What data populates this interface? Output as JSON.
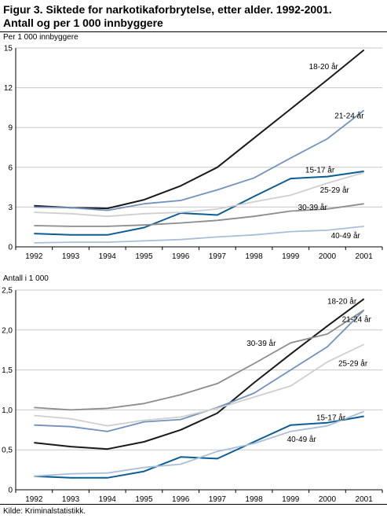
{
  "title_line1": "Figur 3. Siktede for narkotikaforbrytelse, etter alder. 1992-2001.",
  "title_line2": "Antall og per 1 000 innbyggere",
  "source": "Kilde: Kriminalstatistikk.",
  "colors": {
    "18-20 år": "#1a1a1a",
    "21-24 år": "#7191bf",
    "15-17 år": "#0b5d96",
    "25-29 år": "#cfcfcf",
    "30-39 år": "#8c8c8c",
    "40-49 år": "#a9bfd9",
    "grid": "#c8c8c8"
  },
  "chart_data": [
    {
      "type": "line",
      "ylabel": "Per 1 000 innbyggere",
      "x": [
        1992,
        1993,
        1994,
        1995,
        1996,
        1997,
        1998,
        1999,
        2000,
        2001
      ],
      "ylim": [
        0,
        15
      ],
      "yticks": [
        0,
        3,
        6,
        9,
        12,
        15
      ],
      "ytick_labels": [
        "0",
        "3",
        "6",
        "9",
        "12",
        "15"
      ],
      "series": [
        {
          "name": "18-20 år",
          "values": [
            3.1,
            2.95,
            2.9,
            3.55,
            4.6,
            6.0,
            8.2,
            10.4,
            12.6,
            14.85
          ]
        },
        {
          "name": "21-24 år",
          "values": [
            3.0,
            2.95,
            2.75,
            3.25,
            3.5,
            4.3,
            5.2,
            6.7,
            8.15,
            10.3
          ]
        },
        {
          "name": "15-17 år",
          "values": [
            1.0,
            0.9,
            0.9,
            1.45,
            2.55,
            2.4,
            3.8,
            5.15,
            5.3,
            5.7
          ]
        },
        {
          "name": "25-29 år",
          "values": [
            2.6,
            2.5,
            2.3,
            2.5,
            2.6,
            2.85,
            3.4,
            3.9,
            4.8,
            5.6
          ]
        },
        {
          "name": "30-39 år",
          "values": [
            1.6,
            1.55,
            1.55,
            1.65,
            1.8,
            2.0,
            2.3,
            2.7,
            2.85,
            3.25
          ]
        },
        {
          "name": "40-49 år",
          "values": [
            0.3,
            0.35,
            0.35,
            0.45,
            0.55,
            0.75,
            0.9,
            1.15,
            1.25,
            1.55
          ]
        }
      ],
      "labels": [
        {
          "text": "18-20 år",
          "x": 1999.5,
          "y": 13.4,
          "anchor": "start"
        },
        {
          "text": "21-24 år",
          "x": 2000.2,
          "y": 9.7,
          "anchor": "start"
        },
        {
          "text": "15-17 år",
          "x": 1999.4,
          "y": 5.6,
          "anchor": "start"
        },
        {
          "text": "25-29 år",
          "x": 1999.8,
          "y": 4.1,
          "anchor": "start"
        },
        {
          "text": "30-39 år",
          "x": 1999.2,
          "y": 2.8,
          "anchor": "start"
        },
        {
          "text": "40-49 år",
          "x": 2000.1,
          "y": 0.65,
          "anchor": "start"
        }
      ]
    },
    {
      "type": "line",
      "ylabel": "Antall i 1 000",
      "x": [
        1992,
        1993,
        1994,
        1995,
        1996,
        1997,
        1998,
        1999,
        2000,
        2001
      ],
      "ylim": [
        0,
        2.5
      ],
      "yticks": [
        0,
        0.5,
        1.0,
        1.5,
        2.0,
        2.5
      ],
      "ytick_labels": [
        "0",
        "0,5",
        "1,0",
        "1,5",
        "2,0",
        "2,5"
      ],
      "series": [
        {
          "name": "18-20 år",
          "values": [
            0.59,
            0.54,
            0.51,
            0.6,
            0.75,
            0.96,
            1.34,
            1.7,
            2.05,
            2.39
          ]
        },
        {
          "name": "21-24 år",
          "values": [
            0.81,
            0.79,
            0.73,
            0.85,
            0.88,
            1.03,
            1.21,
            1.5,
            1.79,
            2.25
          ]
        },
        {
          "name": "30-39 år",
          "values": [
            1.03,
            1.0,
            1.02,
            1.08,
            1.19,
            1.33,
            1.58,
            1.84,
            1.95,
            2.25
          ]
        },
        {
          "name": "25-29 år",
          "values": [
            0.93,
            0.89,
            0.8,
            0.87,
            0.91,
            1.02,
            1.16,
            1.3,
            1.6,
            1.82
          ]
        },
        {
          "name": "15-17 år",
          "values": [
            0.17,
            0.15,
            0.15,
            0.23,
            0.41,
            0.39,
            0.6,
            0.81,
            0.84,
            0.92
          ]
        },
        {
          "name": "40-49 år",
          "values": [
            0.17,
            0.2,
            0.21,
            0.28,
            0.32,
            0.48,
            0.58,
            0.73,
            0.8,
            0.98
          ]
        }
      ],
      "labels": [
        {
          "text": "18-20 år",
          "x": 2000.0,
          "y": 2.33,
          "anchor": "start"
        },
        {
          "text": "21-24 år",
          "x": 2000.4,
          "y": 2.1,
          "anchor": "start"
        },
        {
          "text": "30-39 år",
          "x": 1997.8,
          "y": 1.8,
          "anchor": "start"
        },
        {
          "text": "25-29 år",
          "x": 2000.3,
          "y": 1.55,
          "anchor": "start"
        },
        {
          "text": "15-17 år",
          "x": 1999.7,
          "y": 0.87,
          "anchor": "start"
        },
        {
          "text": "40-49 år",
          "x": 1998.9,
          "y": 0.6,
          "anchor": "start"
        }
      ]
    }
  ]
}
